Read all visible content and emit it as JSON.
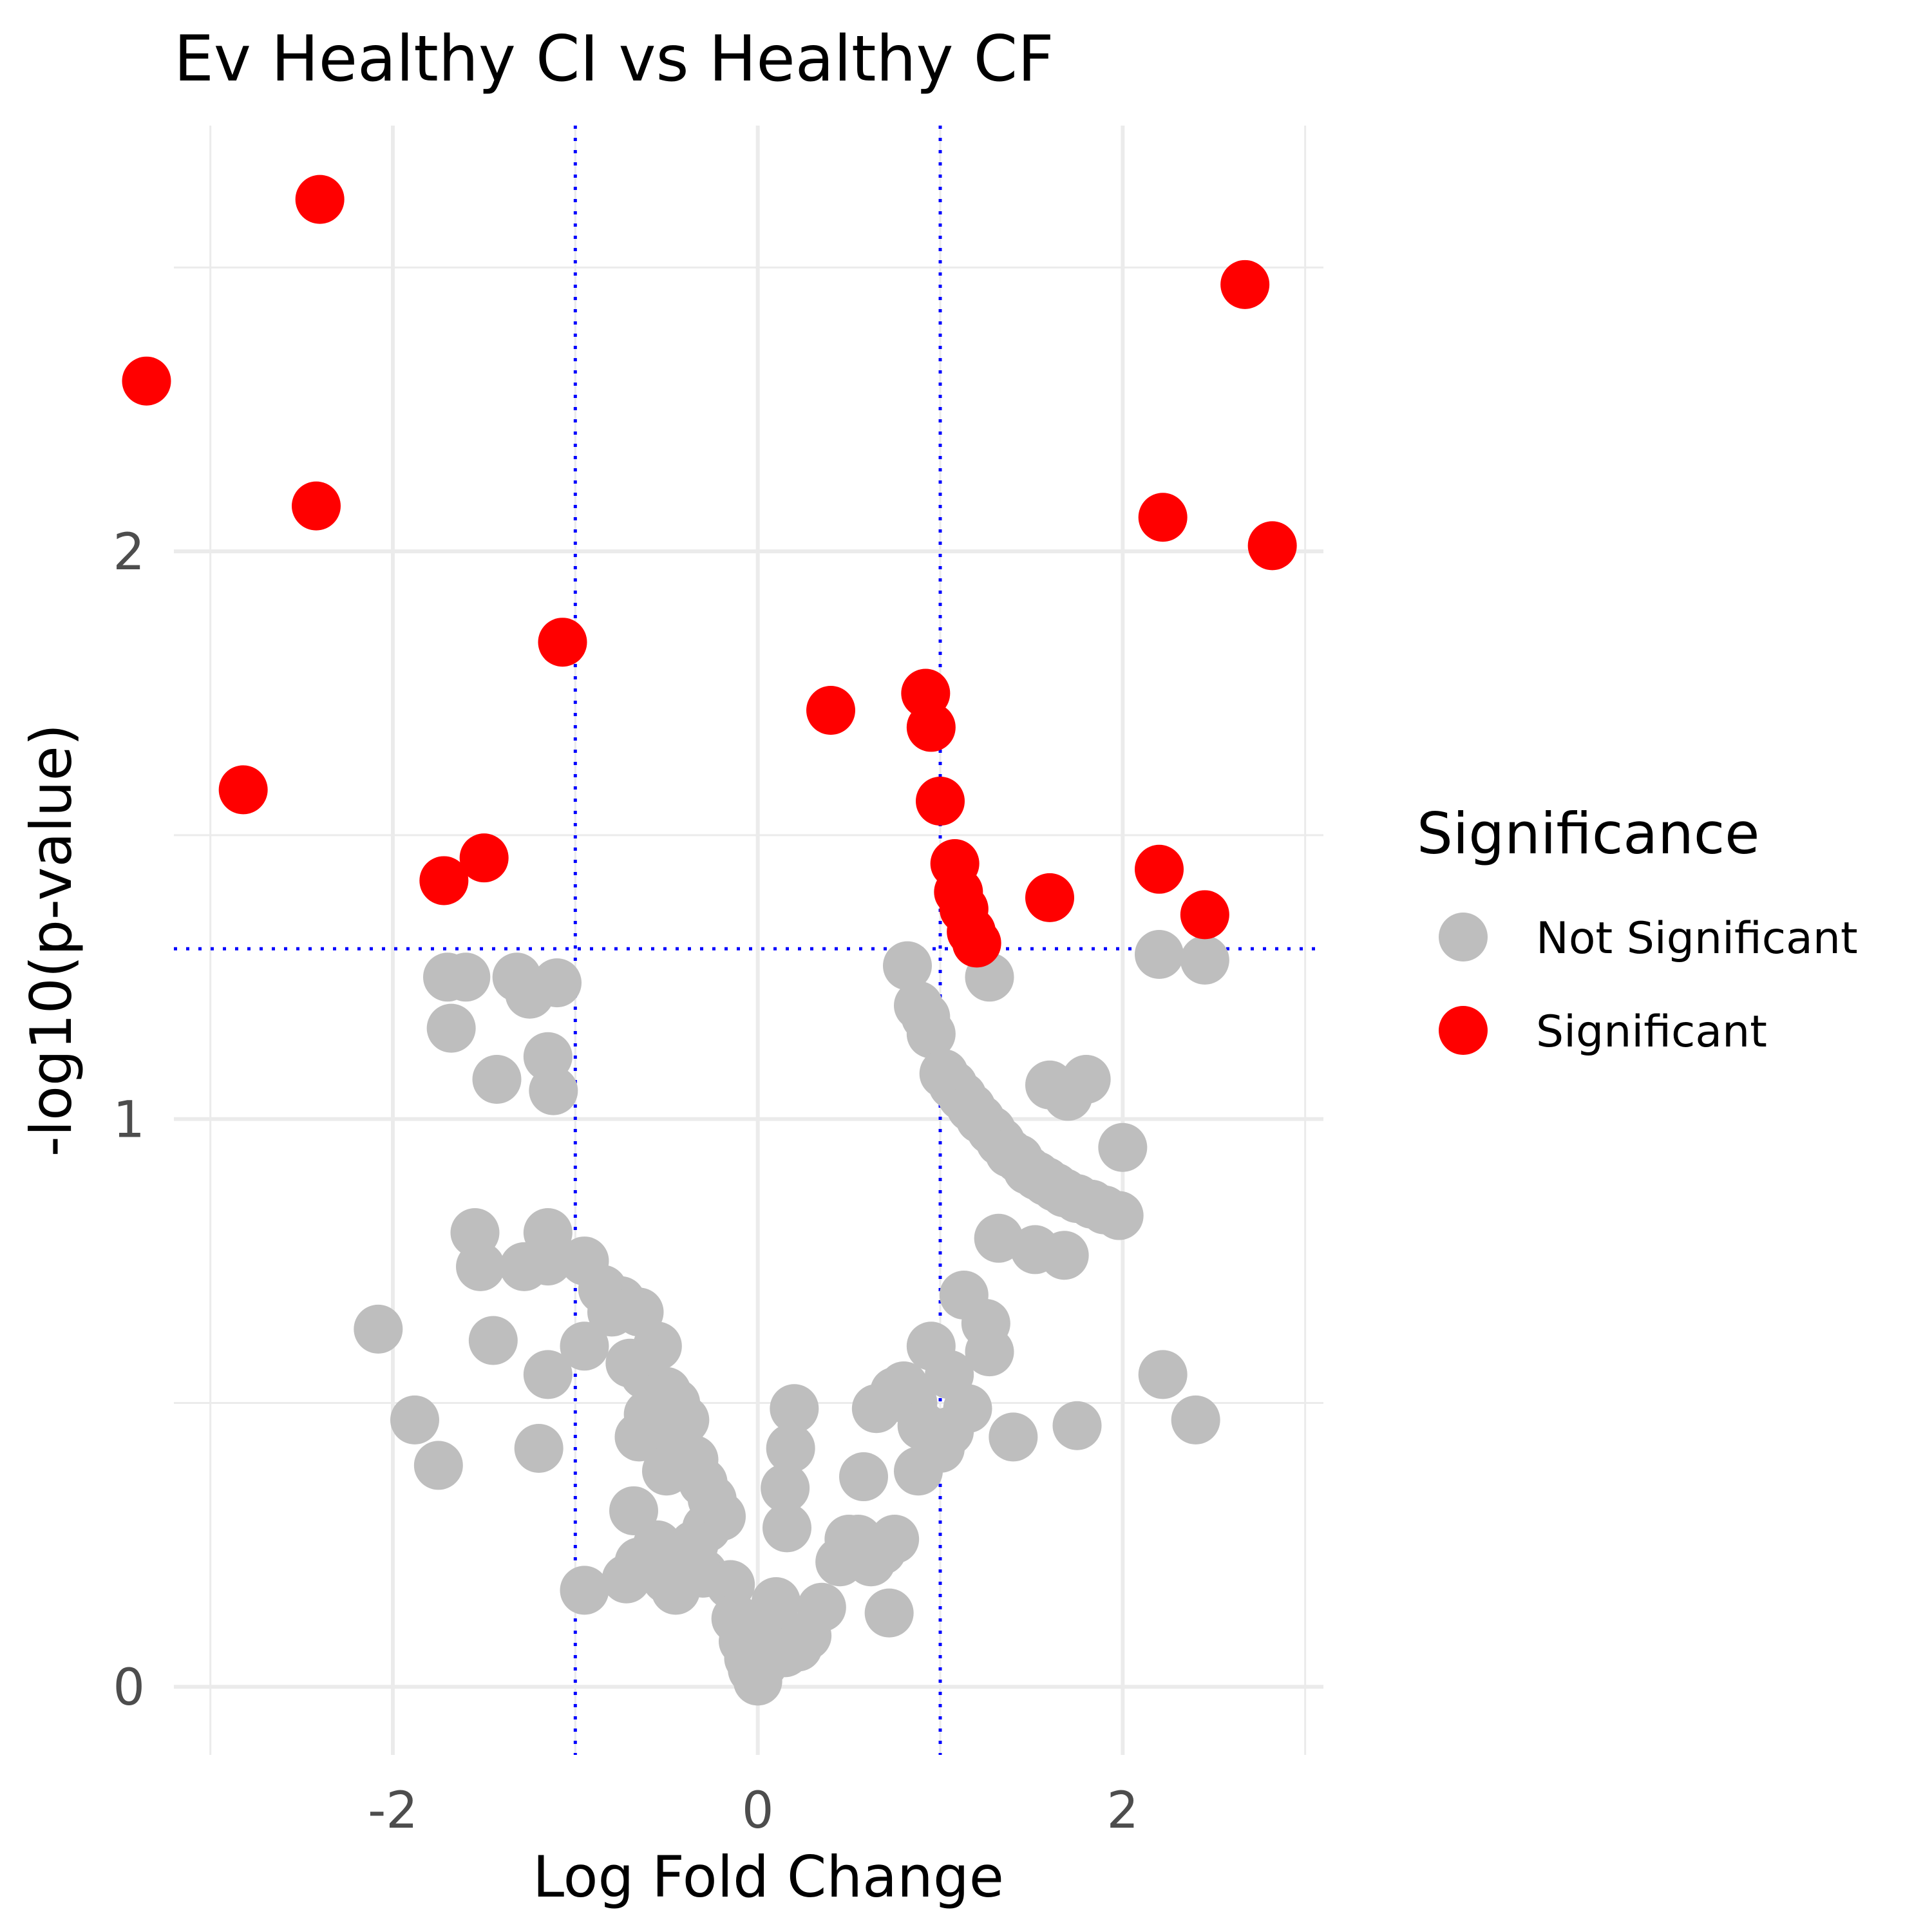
{
  "chart_data": {
    "type": "scatter",
    "title": "Ev Healthy CI vs Healthy CF",
    "xlabel": "Log Fold Change",
    "ylabel": "-log10(p-value)",
    "xlim": [
      -3.2,
      3.1
    ],
    "ylim": [
      -0.12,
      2.75
    ],
    "x_ticks": [
      -2,
      0,
      2
    ],
    "y_ticks": [
      0,
      1,
      2
    ],
    "grid": true,
    "thresholds": {
      "x": [
        -1,
        1
      ],
      "y": 1.3,
      "style": "dotted",
      "color": "#0000ff"
    },
    "legend": {
      "title": "Significance",
      "placement": "right",
      "entries": [
        {
          "label": "Not Significant",
          "color": "#bebebe"
        },
        {
          "label": "Significant",
          "color": "#ff0000"
        }
      ]
    },
    "series": [
      {
        "name": "Significant",
        "color": "#ff0000",
        "points": [
          [
            -2.4,
            2.62
          ],
          [
            -3.35,
            2.3
          ],
          [
            -2.42,
            2.08
          ],
          [
            -1.07,
            1.84
          ],
          [
            -2.82,
            1.58
          ],
          [
            -1.5,
            1.46
          ],
          [
            -1.72,
            1.42
          ],
          [
            0.4,
            1.72
          ],
          [
            0.92,
            1.75
          ],
          [
            0.95,
            1.69
          ],
          [
            1.0,
            1.56
          ],
          [
            1.08,
            1.45
          ],
          [
            1.1,
            1.4
          ],
          [
            1.13,
            1.37
          ],
          [
            1.17,
            1.33
          ],
          [
            1.2,
            1.31
          ],
          [
            1.6,
            1.39
          ],
          [
            2.2,
            1.44
          ],
          [
            2.45,
            1.36
          ],
          [
            2.22,
            2.06
          ],
          [
            2.67,
            2.47
          ],
          [
            2.82,
            2.01
          ]
        ]
      },
      {
        "name": "Not Significant",
        "color": "#bebebe",
        "points": [
          [
            -1.7,
            1.25
          ],
          [
            -1.6,
            1.25
          ],
          [
            -1.32,
            1.25
          ],
          [
            -1.25,
            1.22
          ],
          [
            -1.1,
            1.24
          ],
          [
            -1.68,
            1.16
          ],
          [
            -1.43,
            1.07
          ],
          [
            -1.15,
            1.11
          ],
          [
            -1.12,
            1.05
          ],
          [
            -1.55,
            0.8
          ],
          [
            -1.52,
            0.74
          ],
          [
            -1.28,
            0.74
          ],
          [
            -1.15,
            0.8
          ],
          [
            -1.15,
            0.75
          ],
          [
            -0.95,
            0.75
          ],
          [
            -0.85,
            0.7
          ],
          [
            -0.75,
            0.68
          ],
          [
            -0.8,
            0.66
          ],
          [
            -0.65,
            0.66
          ],
          [
            -0.55,
            0.6
          ],
          [
            -0.95,
            0.6
          ],
          [
            -0.7,
            0.57
          ],
          [
            -0.62,
            0.55
          ],
          [
            -0.5,
            0.52
          ],
          [
            -0.45,
            0.5
          ],
          [
            -0.6,
            0.48
          ],
          [
            -0.4,
            0.47
          ],
          [
            -0.55,
            0.45
          ],
          [
            -0.65,
            0.44
          ],
          [
            -0.35,
            0.4
          ],
          [
            -0.5,
            0.38
          ],
          [
            -0.3,
            0.36
          ],
          [
            -0.25,
            0.33
          ],
          [
            -0.2,
            0.3
          ],
          [
            -0.28,
            0.28
          ],
          [
            -0.35,
            0.25
          ],
          [
            -0.68,
            0.31
          ],
          [
            -0.55,
            0.25
          ],
          [
            -0.45,
            0.22
          ],
          [
            -0.65,
            0.22
          ],
          [
            -0.5,
            0.19
          ],
          [
            -0.72,
            0.19
          ],
          [
            -0.95,
            0.17
          ],
          [
            -0.45,
            0.17
          ],
          [
            -0.3,
            0.2
          ],
          [
            -0.15,
            0.18
          ],
          [
            -0.12,
            0.12
          ],
          [
            -0.08,
            0.08
          ],
          [
            -0.05,
            0.05
          ],
          [
            -0.03,
            0.03
          ],
          [
            0.0,
            0.01
          ],
          [
            0.03,
            0.04
          ],
          [
            0.08,
            0.1
          ],
          [
            0.1,
            0.15
          ],
          [
            0.15,
            0.06
          ],
          [
            0.22,
            0.07
          ],
          [
            0.27,
            0.09
          ],
          [
            0.35,
            0.14
          ],
          [
            0.45,
            0.22
          ],
          [
            0.5,
            0.26
          ],
          [
            0.55,
            0.26
          ],
          [
            0.62,
            0.22
          ],
          [
            0.68,
            0.24
          ],
          [
            0.75,
            0.26
          ],
          [
            0.72,
            0.13
          ],
          [
            0.58,
            0.37
          ],
          [
            0.65,
            0.49
          ],
          [
            0.75,
            0.52
          ],
          [
            0.8,
            0.53
          ],
          [
            0.85,
            0.5
          ],
          [
            0.9,
            0.46
          ],
          [
            0.95,
            0.45
          ],
          [
            1.0,
            0.42
          ],
          [
            1.05,
            0.45
          ],
          [
            0.88,
            0.38
          ],
          [
            0.95,
            0.6
          ],
          [
            1.05,
            0.55
          ],
          [
            1.15,
            0.49
          ],
          [
            1.13,
            0.69
          ],
          [
            1.25,
            0.64
          ],
          [
            1.27,
            0.59
          ],
          [
            1.4,
            0.44
          ],
          [
            1.75,
            0.46
          ],
          [
            1.32,
            0.79
          ],
          [
            1.52,
            0.77
          ],
          [
            1.68,
            0.76
          ],
          [
            0.82,
            1.27
          ],
          [
            0.88,
            1.2
          ],
          [
            0.92,
            1.18
          ],
          [
            0.95,
            1.15
          ],
          [
            1.02,
            1.08
          ],
          [
            1.07,
            1.06
          ],
          [
            1.12,
            1.04
          ],
          [
            1.17,
            1.02
          ],
          [
            1.22,
            1.0
          ],
          [
            1.28,
            0.98
          ],
          [
            1.33,
            0.96
          ],
          [
            1.38,
            0.94
          ],
          [
            1.43,
            0.93
          ],
          [
            1.48,
            0.91
          ],
          [
            1.53,
            0.9
          ],
          [
            1.58,
            0.89
          ],
          [
            1.63,
            0.88
          ],
          [
            1.68,
            0.87
          ],
          [
            1.75,
            0.86
          ],
          [
            1.83,
            0.85
          ],
          [
            1.9,
            0.84
          ],
          [
            1.98,
            0.83
          ],
          [
            2.0,
            0.95
          ],
          [
            1.6,
            1.06
          ],
          [
            1.7,
            1.04
          ],
          [
            1.8,
            1.07
          ],
          [
            1.27,
            1.25
          ],
          [
            2.2,
            1.29
          ],
          [
            2.45,
            1.28
          ],
          [
            2.22,
            0.55
          ],
          [
            2.4,
            0.47
          ],
          [
            0.2,
            0.49
          ],
          [
            0.18,
            0.42
          ],
          [
            0.15,
            0.35
          ],
          [
            0.16,
            0.28
          ],
          [
            -2.08,
            0.63
          ],
          [
            -1.88,
            0.47
          ],
          [
            -1.75,
            0.39
          ],
          [
            -1.45,
            0.61
          ],
          [
            -1.15,
            0.55
          ],
          [
            -1.2,
            0.42
          ]
        ]
      }
    ]
  }
}
